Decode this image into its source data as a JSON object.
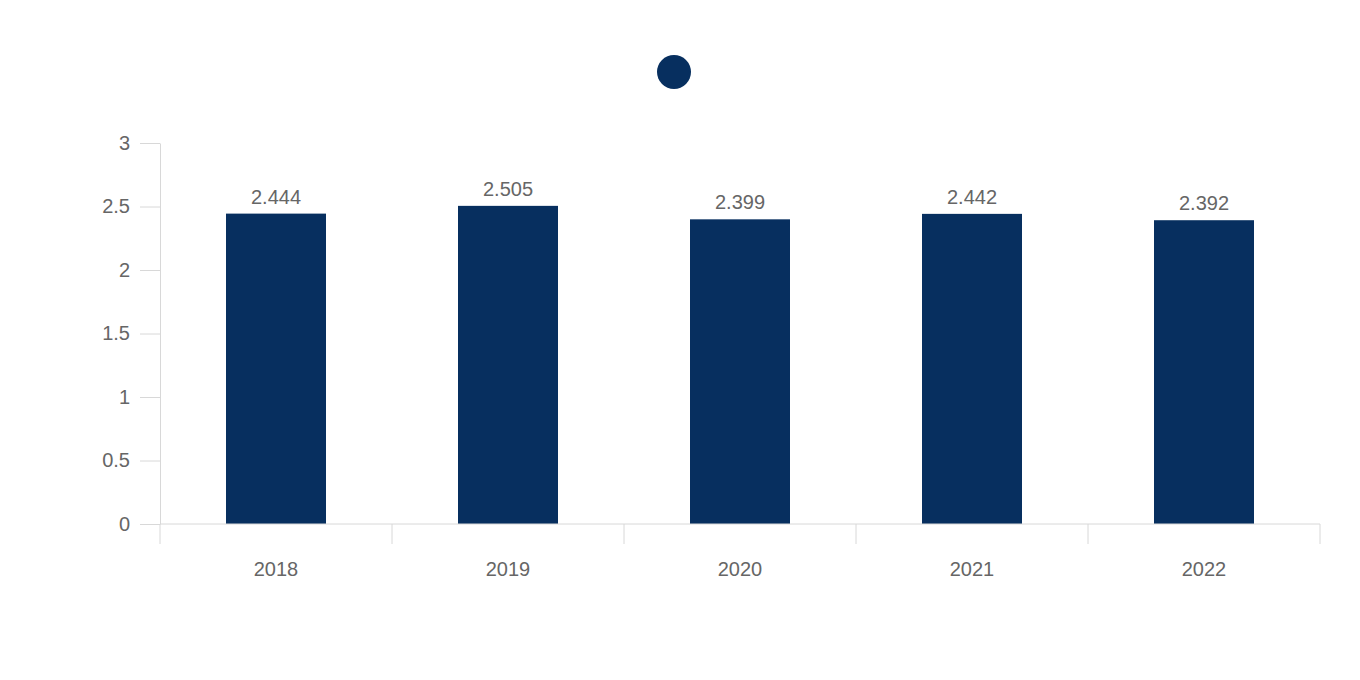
{
  "chart_data": {
    "type": "bar",
    "categories": [
      "2018",
      "2019",
      "2020",
      "2021",
      "2022"
    ],
    "values": [
      2.444,
      2.505,
      2.399,
      2.442,
      2.392
    ],
    "color": "#072f5f",
    "ylim": [
      0,
      3
    ],
    "yticks": [
      0,
      0.5,
      1,
      1.5,
      2,
      2.5,
      3
    ],
    "grid": false,
    "legend": "top",
    "data_labels": true
  }
}
